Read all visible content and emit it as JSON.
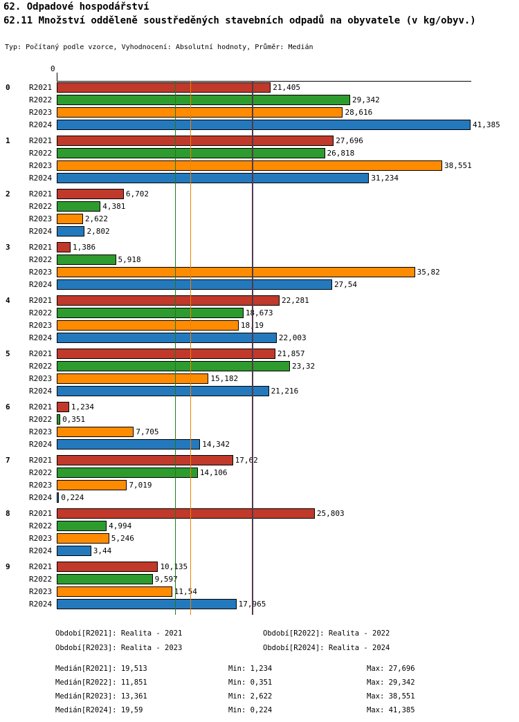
{
  "title": "62. Odpadové hospodářství",
  "subtitle": "62.11 Množství odděleně soustředěných stavebních odpadů na obyvatele (v kg/obyv.)",
  "meta": "Typ: Počítaný podle vzorce, Vyhodnocení: Absolutní hodnoty, Průměr: Medián",
  "chart_data": {
    "type": "bar",
    "orientation": "horizontal",
    "title": "62.11 Množství odděleně soustředěných stavebních odpadů na obyvatele (v kg/obyv.)",
    "xlabel": "kg/obyv.",
    "ylabel": "",
    "xlim": [
      0,
      41.385
    ],
    "axis_zero_label": "0",
    "grid": false,
    "legend_position": "bottom",
    "categories": [
      "0",
      "1",
      "2",
      "3",
      "4",
      "5",
      "6",
      "7",
      "8",
      "9"
    ],
    "series": [
      {
        "name": "R2021",
        "color": "#c0392b",
        "values": [
          21.405,
          27.696,
          6.702,
          1.386,
          22.281,
          21.857,
          1.234,
          17.62,
          25.803,
          10.135
        ],
        "labels": [
          "21,405",
          "27,696",
          "6,702",
          "1,386",
          "22,281",
          "21,857",
          "1,234",
          "17,62",
          "25,803",
          "10,135"
        ]
      },
      {
        "name": "R2022",
        "color": "#2e9b2e",
        "values": [
          29.342,
          26.818,
          4.381,
          5.918,
          18.673,
          23.32,
          0.351,
          14.106,
          4.994,
          9.597
        ],
        "labels": [
          "29,342",
          "26,818",
          "4,381",
          "5,918",
          "18,673",
          "23,32",
          "0,351",
          "14,106",
          "4,994",
          "9,597"
        ]
      },
      {
        "name": "R2023",
        "color": "#ff8c00",
        "values": [
          28.616,
          38.551,
          2.622,
          35.82,
          18.19,
          15.182,
          7.705,
          7.019,
          5.246,
          11.54
        ],
        "labels": [
          "28,616",
          "38,551",
          "2,622",
          "35,82",
          "18,19",
          "15,182",
          "7,705",
          "7,019",
          "5,246",
          "11,54"
        ]
      },
      {
        "name": "R2024",
        "color": "#2479bd",
        "values": [
          41.385,
          31.234,
          2.802,
          27.54,
          22.003,
          21.216,
          14.342,
          0.224,
          3.44,
          17.965
        ],
        "labels": [
          "41,385",
          "31,234",
          "2,802",
          "27,54",
          "22,003",
          "21,216",
          "14,342",
          "0,224",
          "3,44",
          "17,965"
        ]
      }
    ],
    "median_lines": [
      {
        "name": "median-r2021",
        "value": 19.513,
        "color": "#8b1f1b"
      },
      {
        "name": "median-r2022",
        "value": 11.851,
        "color": "#1d7a1d"
      },
      {
        "name": "median-r2023",
        "value": 13.361,
        "color": "#f08000"
      },
      {
        "name": "median-r2024",
        "value": 19.59,
        "color": "#1b4f72"
      }
    ]
  },
  "legend": [
    {
      "label": "Období[R2021]: Realita - 2021"
    },
    {
      "label": "Období[R2022]: Realita - 2022"
    },
    {
      "label": "Období[R2023]: Realita - 2023"
    },
    {
      "label": "Období[R2024]: Realita - 2024"
    }
  ],
  "stats": [
    {
      "median": "Medián[R2021]: 19,513",
      "min": "Min: 1,234",
      "max": "Max: 27,696"
    },
    {
      "median": "Medián[R2022]: 11,851",
      "min": "Min: 0,351",
      "max": "Max: 29,342"
    },
    {
      "median": "Medián[R2023]: 13,361",
      "min": "Min: 2,622",
      "max": "Max: 38,551"
    },
    {
      "median": "Medián[R2024]: 19,59",
      "min": "Min: 0,224",
      "max": "Max: 41,385"
    }
  ]
}
